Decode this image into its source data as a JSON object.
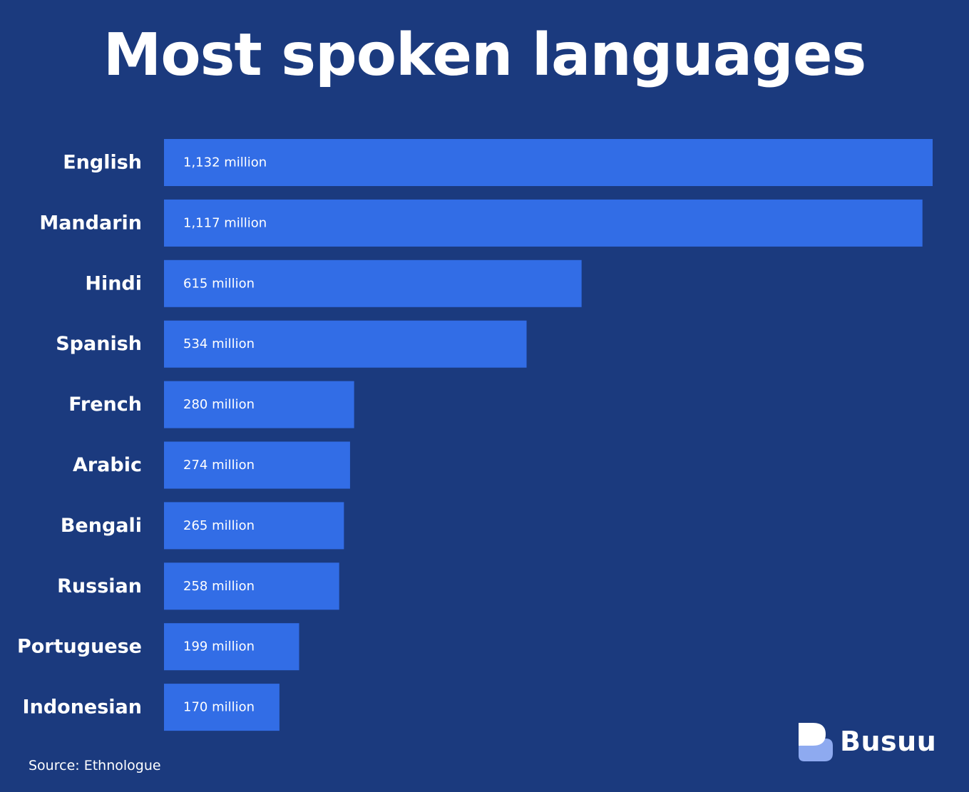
{
  "title": "Most spoken languages",
  "source": "Source: Ethnologue",
  "logo": {
    "text": "Busuu",
    "icon": "busuu-speech-bubble-icon"
  },
  "colors": {
    "background": "#1b3a7e",
    "bar": "#326de6",
    "text": "#ffffff",
    "logo_front": "#ffffff",
    "logo_back": "#8eaaf0"
  },
  "chart_data": {
    "type": "bar",
    "orientation": "horizontal",
    "categories": [
      "English",
      "Mandarin",
      "Hindi",
      "Spanish",
      "French",
      "Arabic",
      "Bengali",
      "Russian",
      "Portuguese",
      "Indonesian"
    ],
    "values": [
      1132,
      1117,
      615,
      534,
      280,
      274,
      265,
      258,
      199,
      170
    ],
    "value_labels": [
      "1,132 million",
      "1,117 million",
      "615 million",
      "534 million",
      "280 million",
      "274 million",
      "265 million",
      "258 million",
      "199 million",
      "170 million"
    ],
    "title": "Most spoken languages",
    "xlabel": "",
    "ylabel": "",
    "xlim": [
      0,
      1132
    ],
    "grid": false
  }
}
